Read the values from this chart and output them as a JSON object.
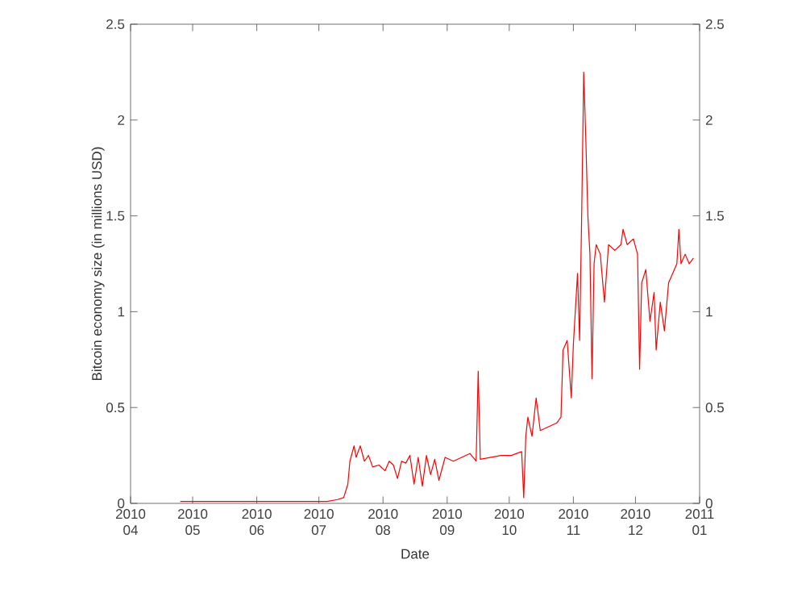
{
  "chart_data": {
    "type": "line",
    "xlabel": "Date",
    "ylabel": "Bitcoin economy size (in millions USD)",
    "xlim": [
      "2010-04-01",
      "2011-01-01"
    ],
    "xticks": [
      {
        "value": "2010-04-01",
        "label": "2010 04"
      },
      {
        "value": "2010-05-01",
        "label": "2010 05"
      },
      {
        "value": "2010-06-01",
        "label": "2010 06"
      },
      {
        "value": "2010-07-01",
        "label": "2010 07"
      },
      {
        "value": "2010-08-01",
        "label": "2010 08"
      },
      {
        "value": "2010-09-01",
        "label": "2010 09"
      },
      {
        "value": "2010-10-01",
        "label": "2010 10"
      },
      {
        "value": "2010-11-01",
        "label": "2010 11"
      },
      {
        "value": "2010-12-01",
        "label": "2010 12"
      },
      {
        "value": "2011-01-01",
        "label": "2011 01"
      }
    ],
    "ylim": [
      0,
      2.5
    ],
    "yticks": [
      0,
      0.5,
      1,
      1.5,
      2,
      2.5
    ],
    "y2lim": [
      0,
      2.5
    ],
    "y2ticks": [
      0,
      0.5,
      1,
      1.5,
      2,
      2.5
    ],
    "series": [
      {
        "color": "#ff0000",
        "x": [
          "2010-04-25",
          "2010-05-10",
          "2010-05-25",
          "2010-06-10",
          "2010-06-25",
          "2010-07-05",
          "2010-07-10",
          "2010-07-13",
          "2010-07-15",
          "2010-07-16",
          "2010-07-18",
          "2010-07-19",
          "2010-07-21",
          "2010-07-23",
          "2010-07-25",
          "2010-07-27",
          "2010-07-30",
          "2010-08-02",
          "2010-08-04",
          "2010-08-06",
          "2010-08-08",
          "2010-08-10",
          "2010-08-12",
          "2010-08-14",
          "2010-08-16",
          "2010-08-18",
          "2010-08-20",
          "2010-08-22",
          "2010-08-24",
          "2010-08-26",
          "2010-08-28",
          "2010-08-31",
          "2010-09-04",
          "2010-09-08",
          "2010-09-12",
          "2010-09-15",
          "2010-09-16",
          "2010-09-17",
          "2010-09-22",
          "2010-09-27",
          "2010-10-02",
          "2010-10-07",
          "2010-10-08",
          "2010-10-09",
          "2010-10-10",
          "2010-10-12",
          "2010-10-14",
          "2010-10-16",
          "2010-10-20",
          "2010-10-24",
          "2010-10-26",
          "2010-10-27",
          "2010-10-29",
          "2010-10-31",
          "2010-11-01",
          "2010-11-03",
          "2010-11-04",
          "2010-11-05",
          "2010-11-06",
          "2010-11-07",
          "2010-11-08",
          "2010-11-09",
          "2010-11-10",
          "2010-11-11",
          "2010-11-12",
          "2010-11-14",
          "2010-11-16",
          "2010-11-18",
          "2010-11-21",
          "2010-11-24",
          "2010-11-25",
          "2010-11-27",
          "2010-11-30",
          "2010-12-02",
          "2010-12-03",
          "2010-12-04",
          "2010-12-06",
          "2010-12-08",
          "2010-12-10",
          "2010-12-11",
          "2010-12-13",
          "2010-12-15",
          "2010-12-17",
          "2010-12-19",
          "2010-12-21",
          "2010-12-22",
          "2010-12-23",
          "2010-12-25",
          "2010-12-27",
          "2010-12-29"
        ],
        "values": [
          0.01,
          0.01,
          0.01,
          0.01,
          0.01,
          0.01,
          0.02,
          0.03,
          0.1,
          0.22,
          0.3,
          0.24,
          0.3,
          0.22,
          0.25,
          0.19,
          0.2,
          0.17,
          0.22,
          0.2,
          0.13,
          0.22,
          0.21,
          0.25,
          0.1,
          0.24,
          0.09,
          0.25,
          0.15,
          0.23,
          0.12,
          0.24,
          0.22,
          0.24,
          0.26,
          0.22,
          0.69,
          0.23,
          0.24,
          0.25,
          0.25,
          0.27,
          0.03,
          0.35,
          0.45,
          0.35,
          0.55,
          0.38,
          0.4,
          0.42,
          0.45,
          0.8,
          0.85,
          0.55,
          0.83,
          1.2,
          0.85,
          1.5,
          2.25,
          1.9,
          1.5,
          1.3,
          0.65,
          1.25,
          1.35,
          1.3,
          1.05,
          1.35,
          1.32,
          1.35,
          1.43,
          1.35,
          1.38,
          1.3,
          0.7,
          1.15,
          1.22,
          0.95,
          1.1,
          0.8,
          1.05,
          0.9,
          1.15,
          1.2,
          1.25,
          1.43,
          1.25,
          1.3,
          1.25,
          1.28
        ]
      }
    ]
  }
}
